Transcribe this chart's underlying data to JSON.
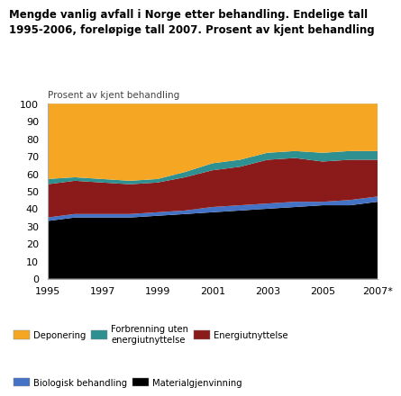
{
  "title_line1": "Mengde vanlig avfall i Norge etter behandling. Endelige tall",
  "title_line2": "1995-2006, foreløpige tall 2007. Prosent av kjent behandling",
  "ylabel": "Prosent av kjent behandling",
  "years": [
    1995,
    1996,
    1997,
    1998,
    1999,
    2000,
    2001,
    2002,
    2003,
    2004,
    2005,
    2006,
    2007
  ],
  "series": {
    "Materialgjenvinning": [
      33,
      35,
      35,
      35,
      36,
      37,
      38,
      39,
      40,
      41,
      42,
      42,
      44
    ],
    "Biologisk behandling": [
      2,
      2,
      2,
      2,
      2,
      2,
      3,
      3,
      3,
      3,
      2,
      3,
      3
    ],
    "Energiutnyttelse": [
      19,
      19,
      18,
      17,
      17,
      19,
      21,
      22,
      25,
      25,
      23,
      23,
      21
    ],
    "Forbrenning uten energiutnyttelse": [
      3,
      2,
      2,
      2,
      2,
      3,
      4,
      4,
      4,
      4,
      5,
      5,
      5
    ],
    "Deponering": [
      43,
      42,
      43,
      44,
      43,
      39,
      34,
      32,
      28,
      27,
      28,
      27,
      27
    ]
  },
  "colors": {
    "Materialgjenvinning": "#000000",
    "Biologisk behandling": "#4472C4",
    "Energiutnyttelse": "#8B1A1A",
    "Forbrenning uten energiutnyttelse": "#2E9090",
    "Deponering": "#F5A623"
  },
  "stack_order": [
    "Materialgjenvinning",
    "Biologisk behandling",
    "Energiutnyttelse",
    "Forbrenning uten energiutnyttelse",
    "Deponering"
  ],
  "ylim": [
    0,
    100
  ],
  "yticks": [
    0,
    10,
    20,
    30,
    40,
    50,
    60,
    70,
    80,
    90,
    100
  ],
  "xtick_labels": [
    "1995",
    "1997",
    "1999",
    "2001",
    "2003",
    "2005",
    "2007*"
  ],
  "xtick_positions": [
    1995,
    1997,
    1999,
    2001,
    2003,
    2005,
    2007
  ],
  "background_color": "#ffffff",
  "grid_color": "#cccccc"
}
